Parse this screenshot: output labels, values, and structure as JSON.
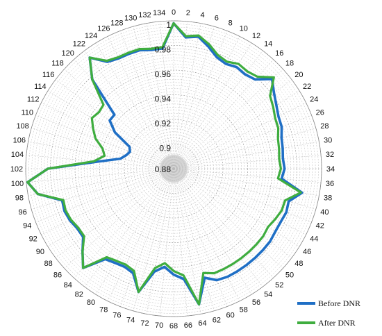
{
  "chart_data": {
    "type": "radar",
    "title": "",
    "categories": [
      0,
      2,
      4,
      6,
      8,
      10,
      12,
      14,
      16,
      18,
      20,
      22,
      24,
      26,
      28,
      30,
      32,
      34,
      36,
      38,
      40,
      42,
      44,
      46,
      48,
      50,
      52,
      54,
      56,
      58,
      60,
      62,
      64,
      66,
      68,
      70,
      72,
      74,
      76,
      78,
      80,
      82,
      84,
      86,
      88,
      90,
      92,
      94,
      96,
      98,
      100,
      102,
      104,
      106,
      108,
      110,
      112,
      114,
      116,
      118,
      120,
      122,
      124,
      126,
      128,
      130,
      132,
      134
    ],
    "rlim": [
      0.88,
      1.0
    ],
    "r_ticks": [
      0.88,
      0.9,
      0.92,
      0.94,
      0.96,
      0.98,
      1
    ],
    "grid": true,
    "legend_position": "bottom-right",
    "colors": {
      "before": "#1f6fc5",
      "after": "#3fad3f",
      "grid": "#b8b8b8"
    },
    "series": [
      {
        "name": "Before DNR",
        "values": [
          0.998,
          0.987,
          0.989,
          0.983,
          0.977,
          0.975,
          0.977,
          0.976,
          0.978,
          0.988,
          0.982,
          0.978,
          0.975,
          0.974,
          0.971,
          0.97,
          0.969,
          0.97,
          0.968,
          0.986,
          0.977,
          0.978,
          0.977,
          0.977,
          0.978,
          0.978,
          0.978,
          0.978,
          0.978,
          0.978,
          0.977,
          0.972,
          0.992,
          0.97,
          0.966,
          0.96,
          0.965,
          0.984,
          0.971,
          0.969,
          0.97,
          0.972,
          0.989,
          0.98,
          0.972,
          0.972,
          0.974,
          0.975,
          0.974,
          0.992,
          0.999,
          0.982,
          0.942,
          0.924,
          0.92,
          0.918,
          0.92,
          0.936,
          0.945,
          0.945,
          0.978,
          0.993,
          0.982,
          0.98,
          0.98,
          0.98,
          0.978,
          0.978
        ]
      },
      {
        "name": "After DNR",
        "values": [
          0.998,
          0.988,
          0.99,
          0.985,
          0.979,
          0.977,
          0.98,
          0.979,
          0.981,
          0.99,
          0.978,
          0.975,
          0.972,
          0.971,
          0.968,
          0.967,
          0.966,
          0.967,
          0.965,
          0.985,
          0.974,
          0.974,
          0.972,
          0.97,
          0.971,
          0.971,
          0.971,
          0.971,
          0.971,
          0.971,
          0.971,
          0.968,
          0.992,
          0.967,
          0.963,
          0.957,
          0.962,
          0.984,
          0.969,
          0.967,
          0.968,
          0.97,
          0.989,
          0.98,
          0.971,
          0.971,
          0.973,
          0.974,
          0.973,
          0.992,
          0.999,
          0.982,
          0.945,
          0.937,
          0.94,
          0.948,
          0.953,
          0.958,
          0.956,
          0.957,
          0.978,
          0.993,
          0.983,
          0.981,
          0.981,
          0.981,
          0.979,
          0.979
        ]
      }
    ]
  }
}
